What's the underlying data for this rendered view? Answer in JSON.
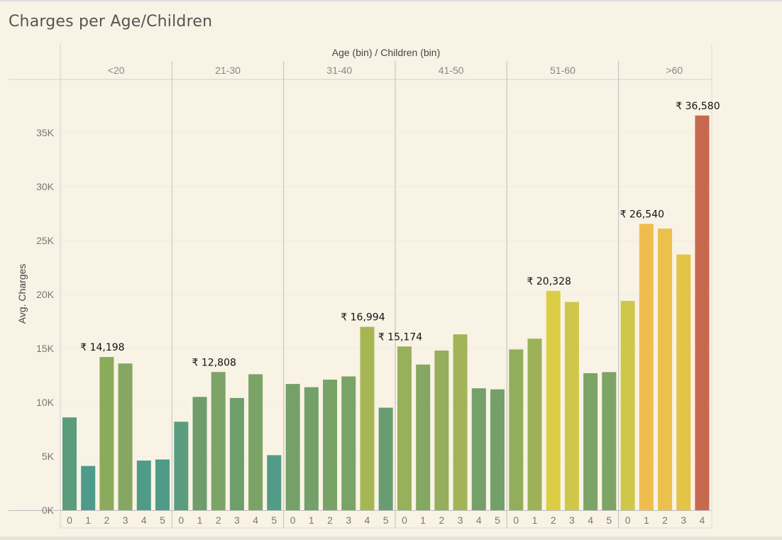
{
  "title": "Charges per Age/Children",
  "colors": {
    "background": "#f9f3e5",
    "label": "#666666",
    "axis": "#cccccc",
    "divider": "#bbbbbb"
  },
  "chart_data": {
    "type": "bar",
    "title": "Charges per Age/Children",
    "header_label": "Age (bin)  /  Children (bin)",
    "ylabel": "Avg. Charges",
    "ylim": [
      0,
      39000
    ],
    "yticks": [
      {
        "value": 0,
        "label": "0K"
      },
      {
        "value": 5000,
        "label": "5K"
      },
      {
        "value": 10000,
        "label": "10K"
      },
      {
        "value": 15000,
        "label": "15K"
      },
      {
        "value": 20000,
        "label": "20K"
      },
      {
        "value": 25000,
        "label": "25K"
      },
      {
        "value": 30000,
        "label": "30K"
      },
      {
        "value": 35000,
        "label": "35K"
      }
    ],
    "grid": true,
    "groups": [
      {
        "name": "<20",
        "bars": [
          {
            "children": "0",
            "value": 8600,
            "color": "#5b9c7d"
          },
          {
            "children": "1",
            "value": 4100,
            "color": "#4e9a8b"
          },
          {
            "children": "2",
            "value": 14198,
            "color": "#8bab5c",
            "label": "₹ 14,198"
          },
          {
            "children": "3",
            "value": 13600,
            "color": "#86a762"
          },
          {
            "children": "4",
            "value": 4600,
            "color": "#509b88"
          },
          {
            "children": "5",
            "value": 4700,
            "color": "#509b88"
          }
        ]
      },
      {
        "name": "21-30",
        "bars": [
          {
            "children": "0",
            "value": 8200,
            "color": "#5a9c7e"
          },
          {
            "children": "1",
            "value": 10500,
            "color": "#6f9e6c"
          },
          {
            "children": "2",
            "value": 12808,
            "color": "#7ca466",
            "label": "₹ 12,808"
          },
          {
            "children": "3",
            "value": 10400,
            "color": "#6e9e6c"
          },
          {
            "children": "4",
            "value": 12600,
            "color": "#7ba366"
          },
          {
            "children": "5",
            "value": 5100,
            "color": "#529b86"
          }
        ]
      },
      {
        "name": "31-40",
        "bars": [
          {
            "children": "0",
            "value": 11700,
            "color": "#75a069"
          },
          {
            "children": "1",
            "value": 11400,
            "color": "#74a06a"
          },
          {
            "children": "2",
            "value": 12100,
            "color": "#79a267"
          },
          {
            "children": "3",
            "value": 12400,
            "color": "#7aa367"
          },
          {
            "children": "4",
            "value": 16994,
            "color": "#a7b655",
            "label": "₹ 16,994"
          },
          {
            "children": "5",
            "value": 9500,
            "color": "#689d72"
          }
        ]
      },
      {
        "name": "41-50",
        "bars": [
          {
            "children": "0",
            "value": 15174,
            "color": "#97b05a",
            "label": "₹ 15,174"
          },
          {
            "children": "1",
            "value": 13500,
            "color": "#84a762"
          },
          {
            "children": "2",
            "value": 14800,
            "color": "#94ae5b"
          },
          {
            "children": "3",
            "value": 16300,
            "color": "#a2b457"
          },
          {
            "children": "4",
            "value": 11300,
            "color": "#74a06a"
          },
          {
            "children": "5",
            "value": 11200,
            "color": "#73a06a"
          }
        ]
      },
      {
        "name": "51-60",
        "bars": [
          {
            "children": "0",
            "value": 14900,
            "color": "#92ad5c"
          },
          {
            "children": "1",
            "value": 15900,
            "color": "#9db258"
          },
          {
            "children": "2",
            "value": 20328,
            "color": "#ddcd45",
            "label": "₹ 20,328"
          },
          {
            "children": "3",
            "value": 19300,
            "color": "#cfc749"
          },
          {
            "children": "4",
            "value": 12700,
            "color": "#7ca466"
          },
          {
            "children": "5",
            "value": 12800,
            "color": "#7da465"
          }
        ]
      },
      {
        "name": ">60",
        "bars": [
          {
            "children": "0",
            "value": 19400,
            "color": "#cfc74a"
          },
          {
            "children": "1",
            "value": 26540,
            "color": "#efbd4e",
            "label": "₹ 26,540"
          },
          {
            "children": "2",
            "value": 26100,
            "color": "#ecc04c"
          },
          {
            "children": "3",
            "value": 23700,
            "color": "#e3c449"
          },
          {
            "children": "4",
            "value": 36580,
            "color": "#c7694f",
            "label": "₹ 36,580"
          }
        ]
      }
    ]
  }
}
